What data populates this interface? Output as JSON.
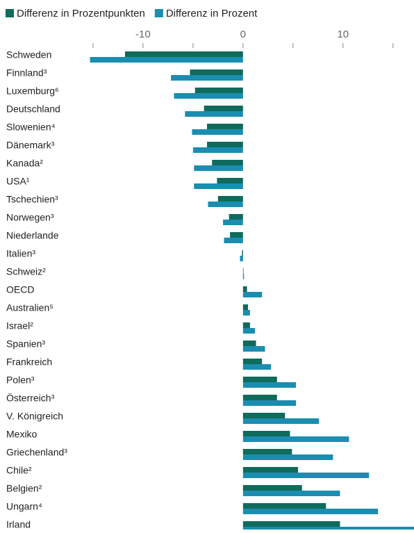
{
  "chart_data": {
    "type": "bar",
    "orientation": "horizontal",
    "categories": [
      "Schweden",
      "Finnland³",
      "Luxemburg⁶",
      "Deutschland",
      "Slowenien⁴",
      "Dänemark³",
      "Kanada²",
      "USA¹",
      "Tschechien³",
      "Norwegen³",
      "Niederlande",
      "Italien³",
      "Schweiz²",
      "OECD",
      "Australien⁵",
      "Israel²",
      "Spanien³",
      "Frankreich",
      "Polen³",
      "Österreich³",
      "V. Königreich",
      "Mexiko",
      "Griechenland³",
      "Chile²",
      "Belgien²",
      "Ungarn⁴",
      "Irland"
    ],
    "series": [
      {
        "name": "Differenz in Prozentpunkten",
        "color": "#0f6b5c",
        "values": [
          -11.8,
          -5.3,
          -4.8,
          -3.9,
          -3.6,
          -3.6,
          -3.1,
          -2.6,
          -2.5,
          -1.4,
          -1.3,
          -0.1,
          0.05,
          0.4,
          0.5,
          0.7,
          1.3,
          1.9,
          3.4,
          3.4,
          4.2,
          4.7,
          4.9,
          5.5,
          5.9,
          8.3,
          9.7
        ]
      },
      {
        "name": "Differenz in Prozent",
        "color": "#1b8db0",
        "values": [
          -15.3,
          -7.2,
          -6.9,
          -5.8,
          -5.1,
          -5.0,
          -4.9,
          -4.9,
          -3.5,
          -2.0,
          -1.9,
          -0.3,
          0.1,
          1.9,
          0.7,
          1.2,
          2.2,
          2.8,
          5.3,
          5.3,
          7.6,
          10.6,
          9.0,
          12.6,
          9.7,
          13.5,
          18
        ]
      }
    ],
    "xlim": [
      -24.3,
      17.1
    ],
    "xticks": [
      -10,
      0,
      10
    ],
    "minor_xticks": [
      -15,
      -5,
      5,
      15
    ],
    "legend": "top-left"
  }
}
